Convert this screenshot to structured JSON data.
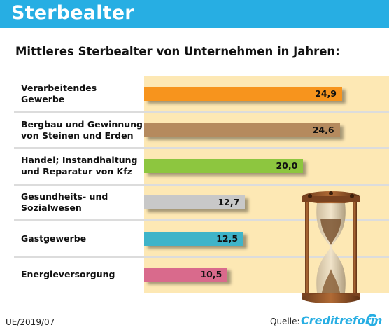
{
  "header": {
    "title": "Sterbealter"
  },
  "chart_data": {
    "type": "bar",
    "orientation": "horizontal",
    "title": "Mittleres Sterbealter von Unternehmen in Jahren:",
    "categories": [
      "Verarbeitendes Gewerbe",
      "Bergbau und Gewinnung von Steinen und Erden",
      "Handel; Instandhaltung und Reparatur von Kfz",
      "Gesundheits- und Sozialwesen",
      "Gastgewerbe",
      "Energieversorgung"
    ],
    "category_lines": [
      [
        "Verarbeitendes",
        "Gewerbe"
      ],
      [
        "Bergbau und Gewinnung",
        "von Steinen und Erden"
      ],
      [
        "Handel; Instandhaltung",
        "und Reparatur von Kfz"
      ],
      [
        "Gesundheits- und",
        "Sozialwesen"
      ],
      [
        "Gastgewerbe"
      ],
      [
        "Energieversorgung"
      ]
    ],
    "values": [
      24.9,
      24.6,
      20.0,
      12.7,
      12.5,
      10.5
    ],
    "value_labels": [
      "24,9",
      "24,6",
      "20,0",
      "12,7",
      "12,5",
      "10,5"
    ],
    "colors": [
      "#f7941d",
      "#b58a5e",
      "#8dc63f",
      "#c8c8c8",
      "#3fb4c9",
      "#d96a8c"
    ]
  },
  "footer": {
    "code": "UE/2019/07",
    "source_label": "Quelle:",
    "brand": "Creditreform"
  }
}
